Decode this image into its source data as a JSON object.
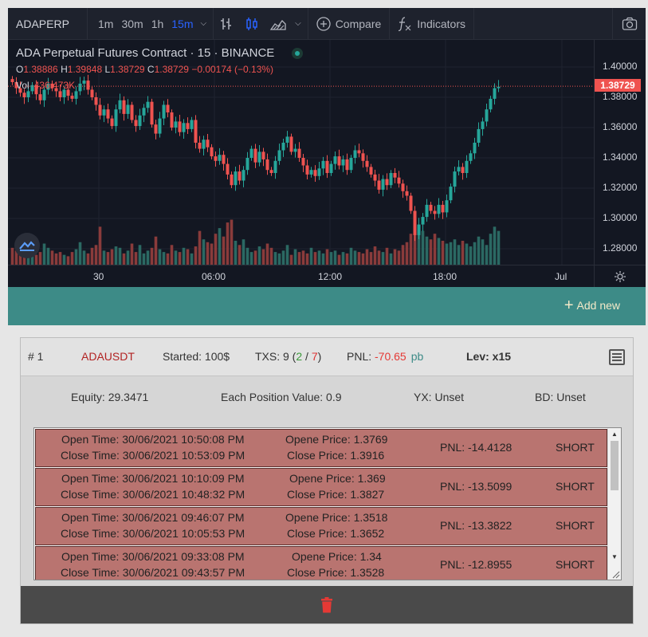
{
  "toolbar": {
    "symbol": "ADAPERP",
    "intervals": [
      "1m",
      "30m",
      "1h",
      "15m"
    ],
    "active_interval": "15m",
    "compare_label": "Compare",
    "indicators_label": "Indicators"
  },
  "legend": {
    "title": "ADA Perpetual Futures Contract · 15 · BINANCE",
    "o_key": "O",
    "o_val": "1.38886",
    "h_key": "H",
    "h_val": "1.39848",
    "l_key": "L",
    "l_val": "1.38729",
    "c_key": "C",
    "c_val": "1.38729",
    "change": "−0.00174 (−0.13%)",
    "vol_key": "Vol",
    "vol_val": "436.473K"
  },
  "price_axis": {
    "labels": [
      "1.40000",
      "1.38000",
      "1.36000",
      "1.34000",
      "1.32000",
      "1.30000",
      "1.28000"
    ],
    "current_price": "1.38729"
  },
  "time_axis": {
    "labels": [
      "30",
      "06:00",
      "12:00",
      "18:00",
      "Jul"
    ]
  },
  "colors": {
    "up": "#26a69a",
    "down": "#ef5350",
    "teal_bar": "#3d8b87",
    "row_bg": "#b97470"
  },
  "actions": {
    "add_new_label": "Add new"
  },
  "bot": {
    "number": "# 1",
    "symbol": "ADAUSDT",
    "started": "Started: 100$",
    "txs_prefix": "TXS: 9 (",
    "txs_wins": "2",
    "txs_sep": " / ",
    "txs_losses": "7",
    "txs_suffix": ")",
    "pnl_label": "PNL:",
    "pnl_value": "-70.65",
    "pnl_tag": "pb",
    "leverage": "Lev: x15",
    "equity": "Equity: 29.3471",
    "position_value": "Each Position Value: 0.9",
    "yx": "YX: Unset",
    "bd": "BD: Unset"
  },
  "transactions": [
    {
      "open_time": "Open Time: 30/06/2021 10:50:08 PM",
      "close_time": "Close Time: 30/06/2021 10:53:09 PM",
      "open_price": "Opene Price: 1.3769",
      "close_price": "Close Price: 1.3916",
      "pnl": "PNL: -14.4128",
      "side": "SHORT"
    },
    {
      "open_time": "Open Time: 30/06/2021 10:10:09 PM",
      "close_time": "Close Time: 30/06/2021 10:48:32 PM",
      "open_price": "Opene Price: 1.369",
      "close_price": "Close Price: 1.3827",
      "pnl": "PNL: -13.5099",
      "side": "SHORT"
    },
    {
      "open_time": "Open Time: 30/06/2021 09:46:07 PM",
      "close_time": "Close Time: 30/06/2021 10:05:53 PM",
      "open_price": "Opene Price: 1.3518",
      "close_price": "Close Price: 1.3652",
      "pnl": "PNL: -13.3822",
      "side": "SHORT"
    },
    {
      "open_time": "Open Time: 30/06/2021 09:33:08 PM",
      "close_time": "Close Time: 30/06/2021 09:43:57 PM",
      "open_price": "Opene Price: 1.34",
      "close_price": "Close Price: 1.3528",
      "pnl": "PNL: -12.8955",
      "side": "SHORT"
    }
  ],
  "chart_data": {
    "type": "candlestick",
    "ylim": [
      1.27,
      1.4
    ],
    "closes": [
      1.39,
      1.386,
      1.383,
      1.38,
      1.384,
      1.388,
      1.382,
      1.378,
      1.385,
      1.389,
      1.386,
      1.384,
      1.38,
      1.385,
      1.381,
      1.379,
      1.384,
      1.389,
      1.391,
      1.385,
      1.38,
      1.375,
      1.368,
      1.372,
      1.366,
      1.361,
      1.372,
      1.378,
      1.369,
      1.375,
      1.365,
      1.361,
      1.368,
      1.373,
      1.377,
      1.362,
      1.356,
      1.366,
      1.375,
      1.37,
      1.36,
      1.364,
      1.357,
      1.363,
      1.359,
      1.365,
      1.35,
      1.346,
      1.352,
      1.347,
      1.341,
      1.338,
      1.342,
      1.336,
      1.329,
      1.322,
      1.331,
      1.325,
      1.332,
      1.34,
      1.346,
      1.337,
      1.344,
      1.339,
      1.332,
      1.33,
      1.338,
      1.345,
      1.35,
      1.354,
      1.344,
      1.346,
      1.34,
      1.335,
      1.329,
      1.332,
      1.328,
      1.333,
      1.338,
      1.33,
      1.336,
      1.341,
      1.335,
      1.339,
      1.332,
      1.34,
      1.345,
      1.343,
      1.338,
      1.334,
      1.329,
      1.325,
      1.319,
      1.326,
      1.322,
      1.33,
      1.327,
      1.323,
      1.318,
      1.315,
      1.305,
      1.289,
      1.296,
      1.301,
      1.309,
      1.305,
      1.303,
      1.309,
      1.304,
      1.312,
      1.321,
      1.331,
      1.334,
      1.33,
      1.338,
      1.343,
      1.35,
      1.359,
      1.364,
      1.372,
      1.379,
      1.386,
      1.387
    ],
    "volumes": [
      12,
      10,
      9,
      14,
      8,
      11,
      7,
      9,
      15,
      12,
      10,
      8,
      9,
      7,
      6,
      9,
      11,
      16,
      10,
      8,
      12,
      14,
      27,
      10,
      9,
      11,
      13,
      12,
      8,
      10,
      15,
      9,
      14,
      8,
      10,
      12,
      20,
      11,
      9,
      8,
      14,
      10,
      9,
      12,
      11,
      8,
      13,
      24,
      18,
      16,
      15,
      22,
      26,
      20,
      30,
      32,
      17,
      14,
      18,
      12,
      9,
      10,
      13,
      11,
      15,
      12,
      9,
      8,
      10,
      14,
      7,
      11,
      9,
      10,
      8,
      12,
      9,
      10,
      8,
      11,
      9,
      10,
      7,
      9,
      8,
      12,
      10,
      9,
      8,
      11,
      9,
      13,
      10,
      9,
      12,
      8,
      11,
      10,
      14,
      16,
      22,
      34,
      28,
      24,
      20,
      18,
      22,
      19,
      17,
      15,
      16,
      18,
      14,
      17,
      15,
      13,
      16,
      20,
      18,
      14,
      22,
      27,
      24
    ]
  }
}
